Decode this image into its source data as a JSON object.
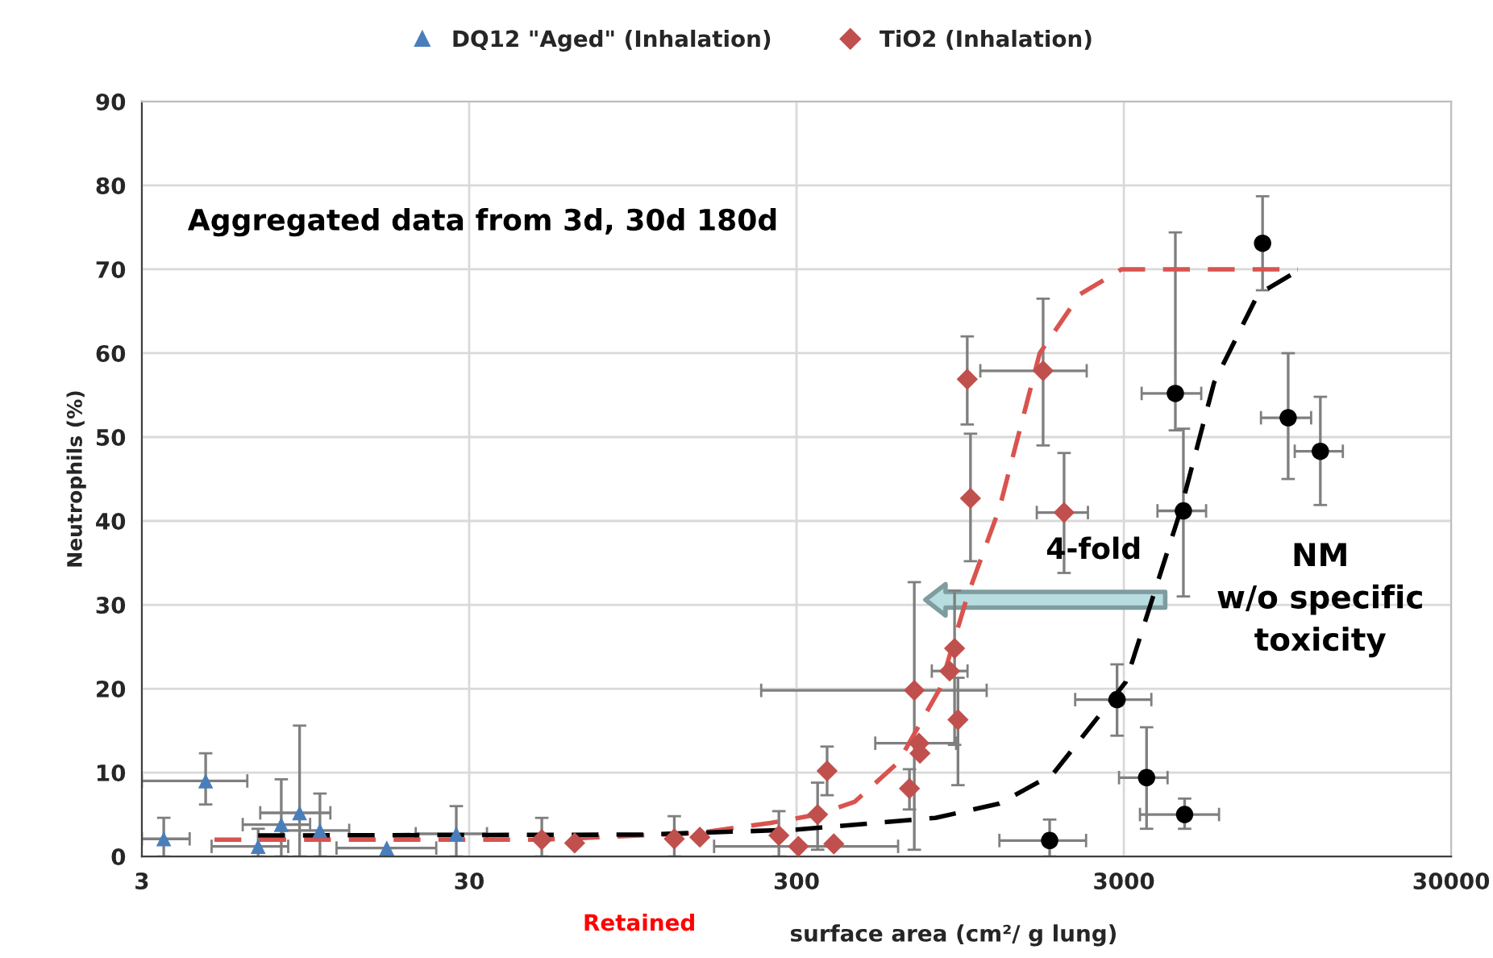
{
  "chart_data": {
    "type": "scatter",
    "ylabel": "Neutrophils (%)",
    "xlabel": "surface area (cm²/ g lung)",
    "log": "x",
    "xlim": [
      3,
      30000
    ],
    "xticks": [
      3,
      30,
      300,
      3000,
      30000
    ],
    "ylim": [
      0,
      90
    ],
    "yticks": [
      0,
      10,
      20,
      30,
      40,
      50,
      60,
      70,
      80,
      90
    ],
    "grid": true,
    "legend": "top",
    "annotations": [
      "Aggregated data from 3d, 30d 180d",
      "4-fold",
      "NM\nw/o specific\ntoxicity",
      "Retained"
    ],
    "series": [
      {
        "name": "DQ12 \"Aged\" (Inhalation)",
        "marker": "triangle",
        "color": "#4a7ebb",
        "x": [
          3.5,
          4.7,
          6.8,
          8.0,
          9.1,
          10.5,
          16.8,
          27.4
        ],
        "values": [
          2.1,
          9.0,
          1.2,
          3.8,
          5.2,
          3.1,
          1.0,
          2.7
        ],
        "errors": [
          [
            0,
            4.6
          ],
          [
            6.2,
            12.3
          ],
          [
            0,
            3.3
          ],
          [
            0,
            9.2
          ],
          [
            0,
            15.6
          ],
          [
            0,
            7.5
          ],
          null,
          [
            0,
            6.0
          ]
        ],
        "xerrors": [
          [
            3.0,
            4.2
          ],
          [
            3.0,
            6.3
          ],
          [
            4.9,
            8.4
          ],
          [
            6.1,
            9.8
          ],
          [
            6.9,
            11.3
          ],
          [
            8.1,
            12.9
          ],
          [
            11.8,
            23.8
          ],
          [
            20.6,
            34
          ]
        ]
      },
      {
        "name": "TiO2 (Inhalation)",
        "marker": "diamond",
        "color": "#c0504d",
        "x": [
          50,
          63,
          127,
          152,
          265,
          304,
          348,
          372,
          390,
          664,
          687,
          710,
          715,
          881,
          912,
          934,
          1020,
          997,
          1700,
          1970
        ],
        "values": [
          2.0,
          1.6,
          2.1,
          2.3,
          2.5,
          1.2,
          5.0,
          10.2,
          1.5,
          8.1,
          19.8,
          13.5,
          12.3,
          22.1,
          24.8,
          16.3,
          42.7,
          56.9,
          57.9,
          41
        ],
        "errors": [
          [
            0,
            4.6
          ],
          null,
          [
            0,
            4.8
          ],
          null,
          [
            0,
            5.4
          ],
          null,
          [
            0.8,
            8.8
          ],
          [
            7.3,
            13.1
          ],
          null,
          [
            5.6,
            10.4
          ],
          [
            0.8,
            32.7
          ],
          null,
          null,
          null,
          [
            13.3,
            31.7
          ],
          [
            8.5,
            21.3
          ],
          [
            35.2,
            50.4
          ],
          [
            51.5,
            62
          ],
          [
            49,
            66.5
          ],
          [
            33.8,
            48.1
          ]
        ],
        "xerrors": [
          null,
          null,
          null,
          null,
          null,
          [
            168,
            613
          ],
          null,
          null,
          null,
          null,
          [
            234,
            1143
          ],
          [
            522,
            922
          ],
          null,
          [
            777,
            999
          ],
          null,
          null,
          null,
          null,
          [
            1093,
            2310
          ],
          [
            1626,
            2330
          ]
        ]
      },
      {
        "marker": "circle",
        "color": "#000000",
        "x": [
          1780,
          2860,
          3520,
          4600,
          4560,
          4310,
          7960,
          9530,
          11950
        ],
        "values": [
          1.9,
          18.7,
          9.4,
          5.0,
          41.2,
          55.2,
          73.1,
          52.3,
          48.3
        ],
        "errors": [
          [
            0,
            4.4
          ],
          [
            14.4,
            22.9
          ],
          [
            3.3,
            15.4
          ],
          [
            3.3,
            6.9
          ],
          [
            31,
            51
          ],
          [
            50.8,
            74.4
          ],
          [
            67.5,
            78.7
          ],
          [
            45,
            60
          ],
          [
            41.9,
            54.8
          ]
        ],
        "xerrors": [
          [
            1250,
            2300
          ],
          [
            2130,
            3640
          ],
          [
            2900,
            4080
          ],
          [
            3360,
            5860
          ],
          [
            3800,
            5350
          ],
          [
            3400,
            5170
          ],
          null,
          [
            7870,
            11200
          ],
          [
            9980,
            14000
          ]
        ]
      },
      {
        "type": "line",
        "line_style": "dashed",
        "color": "#d9534f",
        "x": [
          5,
          50,
          150,
          250,
          348,
          451,
          613,
          822,
          997,
          1250,
          1660,
          2200,
          2950,
          10200
        ],
        "values": [
          2,
          2,
          2.8,
          4,
          5,
          6.5,
          11.2,
          20,
          31,
          41.5,
          60,
          67,
          70,
          70
        ]
      },
      {
        "type": "line",
        "line_style": "dashed",
        "color": "#000000",
        "x": [
          6.8,
          100,
          300,
          797,
          1250,
          1820,
          3040,
          4450,
          5660,
          7700,
          9980
        ],
        "values": [
          2.5,
          2.6,
          3.2,
          4.6,
          6.3,
          9.8,
          20.8,
          41,
          56.5,
          67,
          69.6
        ]
      }
    ]
  }
}
